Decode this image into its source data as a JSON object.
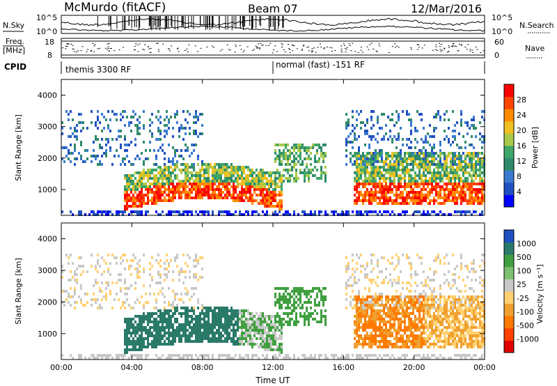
{
  "header": {
    "station": "McMurdo (fitACF)",
    "beam": "Beam 07",
    "date": "12/Mar/2016"
  },
  "top_strip": {
    "nsky_label": "N.Sky",
    "nsky_ticks": [
      "10^5",
      "10^0"
    ],
    "nsearch_label": "N.Search",
    "nsearch_ticks": [
      "10^5",
      "10^0"
    ],
    "freq_label_1": "Freq.",
    "freq_label_2": "[MHz]",
    "freq_ticks": [
      "18",
      "8"
    ],
    "nave_label": "Nave",
    "nave_ticks": [
      "60",
      "0"
    ],
    "cpid_label": "CPID",
    "cpid_segments": [
      "themis 3300 RF",
      "normal (fast) -151 RF"
    ]
  },
  "colors": {
    "power_scale": [
      "#0000ff",
      "#2050c0",
      "#3a7ad0",
      "#2f8a6a",
      "#3fa66a",
      "#a8c84a",
      "#f0c020",
      "#ff8a00",
      "#ff4400",
      "#ff0000"
    ],
    "velocity_scale": [
      "#e00000",
      "#ff4000",
      "#ff7a00",
      "#f0a030",
      "#ffd070",
      "#c8c8c8",
      "#7cc070",
      "#40a040",
      "#2a7a6a",
      "#2050c0"
    ]
  },
  "chart_data": [
    {
      "type": "heatmap",
      "title": "Power",
      "xlabel": "Time UT",
      "ylabel": "Slant Range [km]",
      "x_ticks": [
        "00:00",
        "04:00",
        "08:00",
        "12:00",
        "16:00",
        "20:00",
        "00:00"
      ],
      "y_ticks": [
        1000,
        2000,
        3000,
        4000
      ],
      "xlim_hours": [
        0,
        24
      ],
      "ylim_km": [
        180,
        4500
      ],
      "colorbar_label": "Power [dB]",
      "colorbar_ticks": [
        4,
        8,
        12,
        16,
        20,
        24,
        28
      ],
      "colorbar_range": [
        0,
        30
      ]
    },
    {
      "type": "heatmap",
      "title": "Velocity",
      "xlabel": "Time UT",
      "ylabel": "Slant Range [km]",
      "x_ticks": [
        "00:00",
        "04:00",
        "08:00",
        "12:00",
        "16:00",
        "20:00",
        "00:00"
      ],
      "y_ticks": [
        1000,
        2000,
        3000,
        4000
      ],
      "xlim_hours": [
        0,
        24
      ],
      "ylim_km": [
        180,
        4500
      ],
      "colorbar_label": "Velocity [m s⁻¹]",
      "colorbar_ticks": [
        "1000",
        "500",
        "100",
        "25",
        "-25",
        "-100",
        "-500",
        "-1000"
      ]
    }
  ]
}
